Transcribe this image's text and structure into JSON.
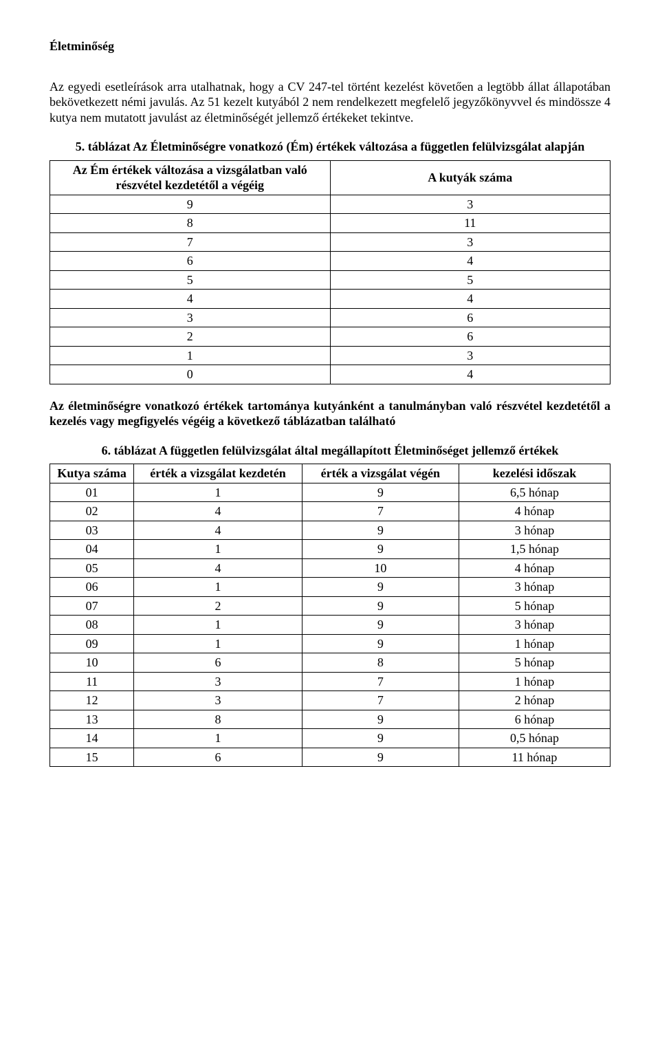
{
  "heading": "Életminőség",
  "para1": "Az egyedi esetleírások arra utalhatnak, hogy a CV 247-tel történt kezelést követően a legtöbb állat állapotában bekövetkezett némi javulás. Az 51 kezelt kutyából 2 nem rendelkezett megfelelő jegyzőkönyvvel és mindössze 4 kutya nem mutatott javulást az életminőségét jellemző értékeket tekintve.",
  "table5": {
    "caption": "5. táblázat Az Életminőségre vonatkozó (Ém) értékek változása a független felülvizsgálat alapján",
    "header_left": "Az Ém értékek változása a vizsgálatban való részvétel kezdetétől a végéig",
    "header_right": "A kutyák száma",
    "rows": [
      {
        "a": "9",
        "b": "3"
      },
      {
        "a": "8",
        "b": "11"
      },
      {
        "a": "7",
        "b": "3"
      },
      {
        "a": "6",
        "b": "4"
      },
      {
        "a": "5",
        "b": "5"
      },
      {
        "a": "4",
        "b": "4"
      },
      {
        "a": "3",
        "b": "6"
      },
      {
        "a": "2",
        "b": "6"
      },
      {
        "a": "1",
        "b": "3"
      },
      {
        "a": "0",
        "b": "4"
      }
    ]
  },
  "para2": "Az életminőségre vonatkozó értékek tartománya kutyánként a tanulmányban való részvétel kezdetétől a kezelés vagy megfigyelés végéig a következő táblázatban található",
  "table6": {
    "caption": "6. táblázat A független felülvizsgálat által megállapított Életminőséget jellemző értékek",
    "headers": {
      "c1": "Kutya száma",
      "c2": "érték a vizsgálat kezdetén",
      "c3": "érték a vizsgálat végén",
      "c4": "kezelési időszak"
    },
    "rows": [
      {
        "c1": "01",
        "c2": "1",
        "c3": "9",
        "c4": "6,5 hónap"
      },
      {
        "c1": "02",
        "c2": "4",
        "c3": "7",
        "c4": "4 hónap"
      },
      {
        "c1": "03",
        "c2": "4",
        "c3": "9",
        "c4": "3 hónap"
      },
      {
        "c1": "04",
        "c2": "1",
        "c3": "9",
        "c4": "1,5 hónap"
      },
      {
        "c1": "05",
        "c2": "4",
        "c3": "10",
        "c4": "4 hónap"
      },
      {
        "c1": "06",
        "c2": "1",
        "c3": "9",
        "c4": "3 hónap"
      },
      {
        "c1": "07",
        "c2": "2",
        "c3": "9",
        "c4": "5 hónap"
      },
      {
        "c1": "08",
        "c2": "1",
        "c3": "9",
        "c4": "3 hónap"
      },
      {
        "c1": "09",
        "c2": "1",
        "c3": "9",
        "c4": "1 hónap"
      },
      {
        "c1": "10",
        "c2": "6",
        "c3": "8",
        "c4": "5 hónap"
      },
      {
        "c1": "11",
        "c2": "3",
        "c3": "7",
        "c4": "1 hónap"
      },
      {
        "c1": "12",
        "c2": "3",
        "c3": "7",
        "c4": "2 hónap"
      },
      {
        "c1": "13",
        "c2": "8",
        "c3": "9",
        "c4": "6 hónap"
      },
      {
        "c1": "14",
        "c2": "1",
        "c3": "9",
        "c4": "0,5 hónap"
      },
      {
        "c1": "15",
        "c2": "6",
        "c3": "9",
        "c4": "11 hónap"
      }
    ]
  }
}
